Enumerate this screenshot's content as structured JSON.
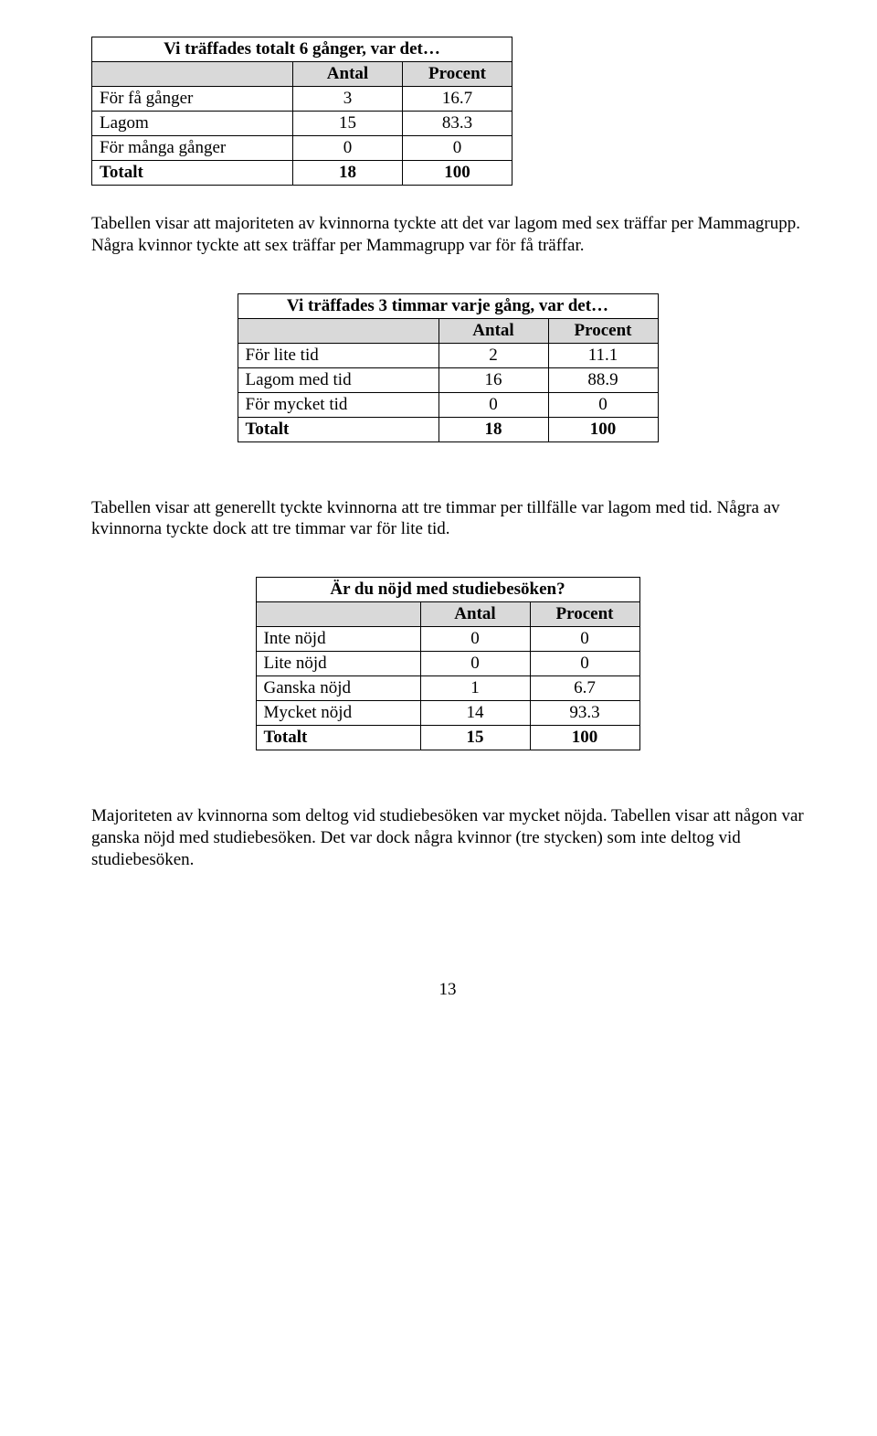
{
  "table1": {
    "title": "Vi träffades totalt 6 gånger, var det…",
    "headers": [
      "Antal",
      "Procent"
    ],
    "col_widths": [
      "220px",
      "120px",
      "120px"
    ],
    "rows": [
      {
        "label": "För få gånger",
        "antal": "3",
        "procent": "16.7",
        "bold": false
      },
      {
        "label": "Lagom",
        "antal": "15",
        "procent": "83.3",
        "bold": false
      },
      {
        "label": "För många gånger",
        "antal": "0",
        "procent": "0",
        "bold": false
      },
      {
        "label": "Totalt",
        "antal": "18",
        "procent": "100",
        "bold": true
      }
    ]
  },
  "para1": "Tabellen visar att majoriteten av kvinnorna tyckte att det var lagom med sex träffar per Mammagrupp. Några kvinnor tyckte att sex träffar per Mammagrupp var för få träffar.",
  "table2": {
    "title": "Vi träffades 3 timmar varje gång, var det…",
    "headers": [
      "Antal",
      "Procent"
    ],
    "col_widths": [
      "220px",
      "120px",
      "120px"
    ],
    "rows": [
      {
        "label": "För lite tid",
        "antal": "2",
        "procent": "11.1",
        "bold": false
      },
      {
        "label": "Lagom med tid",
        "antal": "16",
        "procent": "88.9",
        "bold": false
      },
      {
        "label": "För mycket tid",
        "antal": "0",
        "procent": "0",
        "bold": false
      },
      {
        "label": "Totalt",
        "antal": "18",
        "procent": "100",
        "bold": true
      }
    ]
  },
  "para2": "Tabellen visar att generellt tyckte kvinnorna att tre timmar per tillfälle var lagom med tid. Några av kvinnorna tyckte dock att tre timmar var för lite tid.",
  "table3": {
    "title": "Är du nöjd med studiebesöken?",
    "headers": [
      "Antal",
      "Procent"
    ],
    "col_widths": [
      "180px",
      "120px",
      "120px"
    ],
    "rows": [
      {
        "label": "Inte nöjd",
        "antal": "0",
        "procent": "0",
        "bold": false
      },
      {
        "label": "Lite nöjd",
        "antal": "0",
        "procent": "0",
        "bold": false
      },
      {
        "label": "Ganska nöjd",
        "antal": "1",
        "procent": "6.7",
        "bold": false
      },
      {
        "label": "Mycket nöjd",
        "antal": "14",
        "procent": "93.3",
        "bold": false
      },
      {
        "label": "Totalt",
        "antal": "15",
        "procent": "100",
        "bold": true
      }
    ]
  },
  "para3": "Majoriteten av kvinnorna som deltog vid studiebesöken var mycket nöjda. Tabellen visar att någon var ganska nöjd med studiebesöken. Det var dock några kvinnor (tre stycken) som inte deltog vid studiebesöken.",
  "page_number": "13"
}
